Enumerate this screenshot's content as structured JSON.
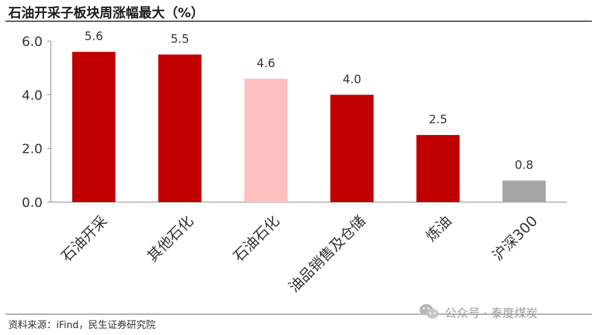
{
  "title": "石油开采子板块周涨幅最大（%）",
  "source": "资料来源：iFind，民生证券研究院",
  "watermark": "公众号 · 泰度煤炭",
  "watermark_icon": "wechat-icon",
  "chart_data": {
    "type": "bar",
    "categories": [
      "石油开采",
      "其他石化",
      "石油石化",
      "油品销售及仓储",
      "炼油",
      "沪深300"
    ],
    "values": [
      5.6,
      5.5,
      4.6,
      4.0,
      2.5,
      0.8
    ],
    "data_labels": [
      "5.6",
      "5.5",
      "4.6",
      "4.0",
      "2.5",
      "0.8"
    ],
    "colors": [
      "#C00000",
      "#C00000",
      "#FFBFBF",
      "#C00000",
      "#C00000",
      "#A6A6A6"
    ],
    "ylim": [
      0,
      6.0
    ],
    "yticks": [
      0,
      2,
      4,
      6
    ],
    "ytick_labels": [
      "0.0",
      "2.0",
      "4.0",
      "6.0"
    ],
    "xlabel": "",
    "ylabel": "",
    "grid": false,
    "legend": "none"
  }
}
